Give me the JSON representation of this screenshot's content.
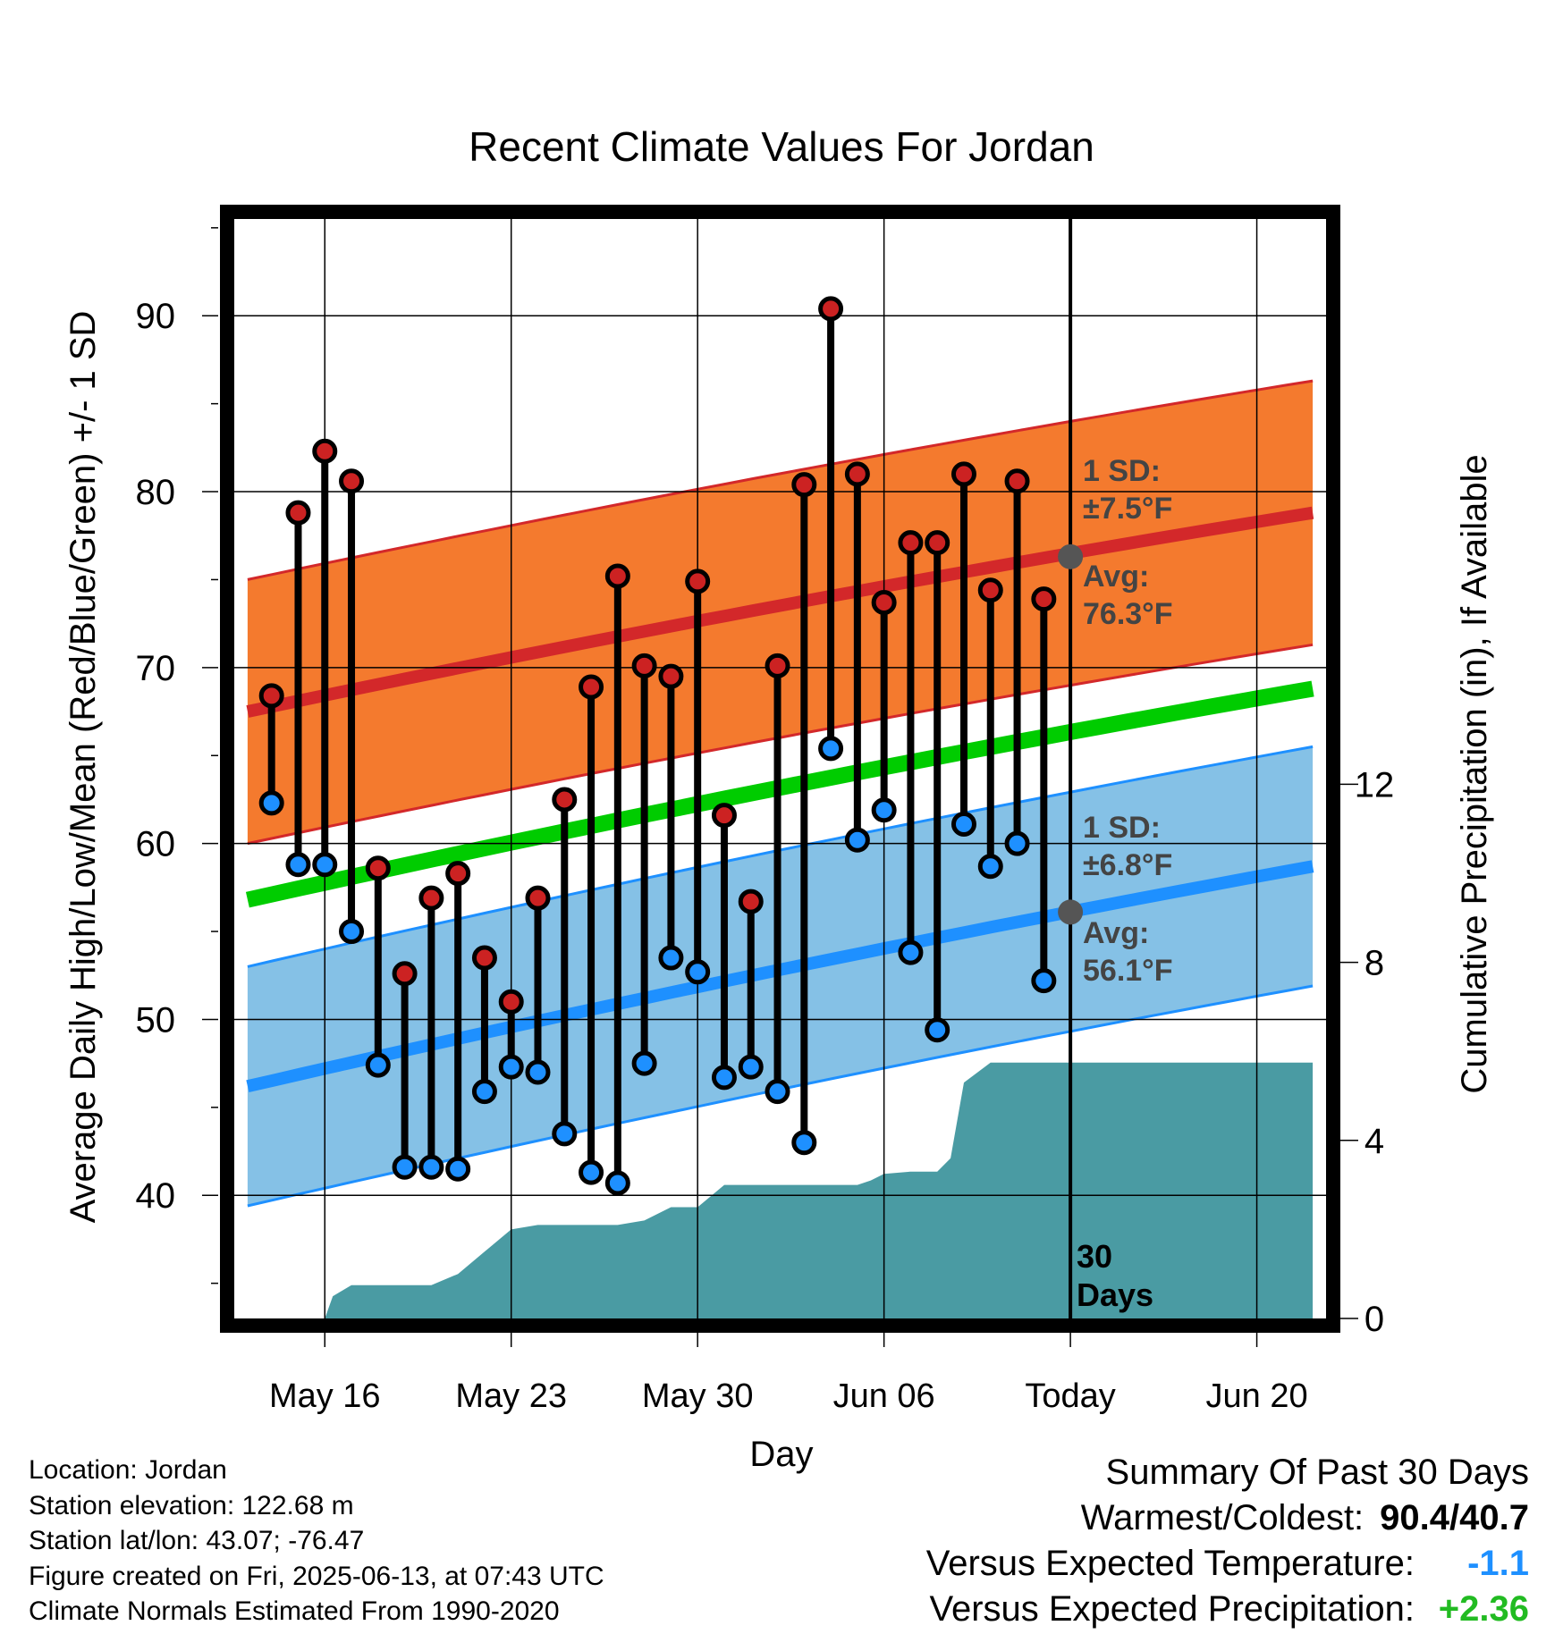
{
  "chart_data": {
    "type": "line",
    "title": "Recent Climate Values For Jordan",
    "xlabel": "Day",
    "ylabel_left": "Average Daily High/Low/Mean (Red/Blue/Green) +/- 1 SD",
    "ylabel_right": "Cumulative Precipitation (in), If Available",
    "y_left_ticks": [
      "40",
      "50",
      "60",
      "70",
      "80",
      "90"
    ],
    "y_right_ticks": [
      "0",
      "4",
      "8",
      "12"
    ],
    "ylim_left": [
      33,
      95.5
    ],
    "ylim_right": [
      0,
      24.7
    ],
    "x_ticks": [
      {
        "label": "May 16",
        "day": 16
      },
      {
        "label": "May 23",
        "day": 23
      },
      {
        "label": "May 30",
        "day": 30
      },
      {
        "label": "Jun 06",
        "day": 37
      },
      {
        "label": "Today",
        "day": 44
      },
      {
        "label": "Jun 20",
        "day": 51
      }
    ],
    "xlim_days": [
      12.6,
      53.6
    ],
    "today_day": 44,
    "x_day_reference": "May 1 = day 1",
    "grid": true,
    "high_normal": {
      "start": [
        13.1,
        67.5
      ],
      "end": [
        53.1,
        78.8
      ],
      "sd": 7.5
    },
    "low_normal": {
      "start": [
        13.1,
        46.2
      ],
      "end": [
        53.1,
        58.7
      ],
      "sd": 6.8
    },
    "mean_normal": {
      "start": [
        13.1,
        56.8
      ],
      "end": [
        53.1,
        68.8
      ]
    },
    "daily": {
      "days": [
        14,
        15,
        16,
        17,
        18,
        19,
        20,
        21,
        22,
        23,
        24,
        25,
        26,
        27,
        28,
        29,
        30,
        31,
        32,
        33,
        34,
        35,
        36,
        37,
        38,
        39,
        40,
        41,
        42,
        43
      ],
      "highs": [
        68.4,
        78.8,
        82.3,
        80.6,
        58.6,
        52.6,
        56.9,
        58.3,
        53.5,
        51.0,
        56.9,
        62.5,
        68.9,
        75.2,
        70.1,
        69.5,
        74.9,
        61.6,
        56.7,
        70.1,
        80.4,
        90.4,
        81.0,
        73.7,
        77.1,
        77.1,
        81.0,
        74.4,
        80.6,
        73.9
      ],
      "lows": [
        62.3,
        58.8,
        58.8,
        55.0,
        47.4,
        41.6,
        41.6,
        41.5,
        45.9,
        47.3,
        47.0,
        43.5,
        41.3,
        40.7,
        47.5,
        53.5,
        52.7,
        46.7,
        47.3,
        45.9,
        43.0,
        65.4,
        60.2,
        61.9,
        53.8,
        49.4,
        61.1,
        58.7,
        60.0,
        52.2
      ]
    },
    "precip": {
      "days": [
        16,
        16.3,
        17,
        18,
        19,
        20,
        21,
        22,
        23,
        24,
        25,
        26,
        27,
        28,
        29,
        30,
        31,
        32,
        33,
        34,
        35,
        36,
        36.5,
        37,
        38,
        39,
        39.5,
        40,
        41,
        42,
        43,
        44,
        53.1
      ],
      "values": [
        0,
        0.5,
        0.75,
        0.75,
        0.75,
        0.75,
        1.0,
        1.5,
        2.0,
        2.1,
        2.1,
        2.1,
        2.1,
        2.2,
        2.5,
        2.5,
        3.0,
        3.0,
        3.0,
        3.0,
        3.0,
        3.0,
        3.1,
        3.25,
        3.3,
        3.3,
        3.6,
        5.3,
        5.75,
        5.75,
        5.75,
        5.75,
        5.75
      ]
    },
    "annotations": {
      "high_sd": [
        "1 SD:",
        "±7.5°F"
      ],
      "high_avg": [
        "Avg:",
        "76.3°F"
      ],
      "low_sd": [
        "1 SD:",
        "±6.8°F"
      ],
      "low_avg": [
        "Avg:",
        "56.1°F"
      ],
      "window": [
        "30",
        "Days"
      ]
    },
    "colors": {
      "high_band": "#f47a2e",
      "high_line": "#d3282a",
      "high_edge": "#d3282a",
      "low_band": "#85c1e6",
      "low_line": "#1e90ff",
      "low_edge": "#1e90ff",
      "mean_line": "#00cc00",
      "precip_fill": "#4a9ba3",
      "high_dot": "#cc2222",
      "low_dot": "#1e90ff",
      "today_dot": "#555555"
    }
  },
  "info": {
    "location": "Location: Jordan",
    "elevation": "Station elevation: 122.68 m",
    "latlon": "Station lat/lon: 43.07; -76.47",
    "created": "Figure created on Fri, 2025-06-13, at 07:43 UTC",
    "normals": "Climate Normals Estimated From 1990-2020"
  },
  "summary": {
    "heading": "Summary Of Past 30 Days",
    "warmest_label": "Warmest/Coldest:",
    "warmest_value": "90.4/40.7",
    "temp_label": "Versus Expected Temperature:",
    "temp_value": "-1.1",
    "temp_color": "#1e90ff",
    "precip_label": "Versus Expected Precipitation:",
    "precip_value": "+2.36",
    "precip_color": "#22bb22"
  }
}
